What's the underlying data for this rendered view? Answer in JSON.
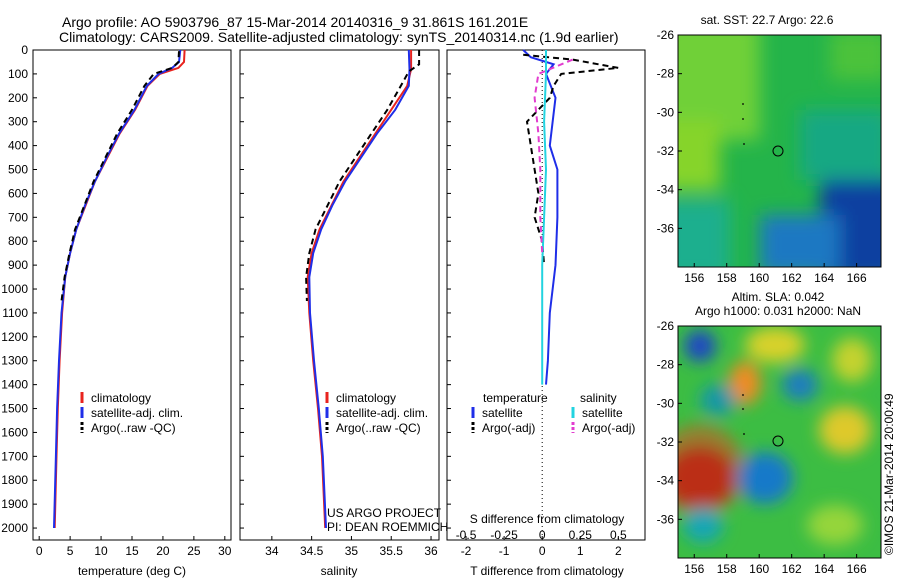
{
  "header": {
    "title_line1": "Argo profile: AO 5903796_87 15-Mar-2014 20140316_9 31.861S 161.201E",
    "title_line2": "Climatology: CARS2009. Satellite-adjusted climatology: synTS_20140314.nc (1.9d earlier)"
  },
  "colors": {
    "climatology": "#e8231e",
    "satellite": "#1f2ee8",
    "argo": "#000000",
    "cyan": "#22d3e0",
    "magenta": "#e23ccf"
  },
  "chart_data": [
    {
      "type": "line",
      "id": "temperature",
      "xlabel": "temperature (deg C)",
      "ylabel": "",
      "xlim": [
        -1,
        31
      ],
      "ylim": [
        2050,
        0
      ],
      "xticks": [
        0,
        5,
        10,
        15,
        20,
        25,
        30
      ],
      "yticks": [
        0,
        100,
        200,
        300,
        400,
        500,
        600,
        700,
        800,
        900,
        1000,
        1100,
        1200,
        1300,
        1400,
        1500,
        1600,
        1700,
        1800,
        1900,
        2000
      ],
      "legend": [
        "climatology",
        "satellite-adj. clim.",
        "Argo(..raw -QC)"
      ],
      "series": [
        {
          "name": "climatology",
          "color_key": "climatology",
          "dash": false,
          "points": [
            [
              23.5,
              0
            ],
            [
              23.4,
              50
            ],
            [
              22.5,
              75
            ],
            [
              19.5,
              100
            ],
            [
              17.5,
              150
            ],
            [
              15.5,
              250
            ],
            [
              13,
              350
            ],
            [
              11,
              450
            ],
            [
              9,
              550
            ],
            [
              7.5,
              650
            ],
            [
              6,
              750
            ],
            [
              5,
              850
            ],
            [
              4.2,
              950
            ],
            [
              3.7,
              1100
            ],
            [
              3.3,
              1300
            ],
            [
              3,
              1500
            ],
            [
              2.8,
              1700
            ],
            [
              2.5,
              2000
            ]
          ]
        },
        {
          "name": "satellite-adj. clim.",
          "color_key": "satellite",
          "dash": false,
          "points": [
            [
              22.8,
              0
            ],
            [
              22.6,
              50
            ],
            [
              21.5,
              75
            ],
            [
              19.3,
              100
            ],
            [
              17.4,
              150
            ],
            [
              15.4,
              250
            ],
            [
              12.9,
              350
            ],
            [
              10.9,
              450
            ],
            [
              9,
              550
            ],
            [
              7.4,
              650
            ],
            [
              6,
              750
            ],
            [
              5,
              850
            ],
            [
              4.2,
              950
            ],
            [
              3.6,
              1100
            ],
            [
              3.2,
              1300
            ],
            [
              2.9,
              1500
            ],
            [
              2.7,
              1700
            ],
            [
              2.4,
              2000
            ]
          ]
        },
        {
          "name": "Argo(..raw -QC)",
          "color_key": "argo",
          "dash": true,
          "points": [
            [
              22.6,
              5
            ],
            [
              22.5,
              50
            ],
            [
              21.5,
              75
            ],
            [
              18.5,
              100
            ],
            [
              17,
              150
            ],
            [
              15,
              250
            ],
            [
              12.6,
              350
            ],
            [
              10.7,
              450
            ],
            [
              8.8,
              550
            ],
            [
              7.3,
              650
            ],
            [
              5.8,
              750
            ],
            [
              4.9,
              850
            ],
            [
              4.1,
              950
            ],
            [
              3.6,
              1050
            ]
          ]
        }
      ]
    },
    {
      "type": "line",
      "id": "salinity",
      "xlabel": "salinity",
      "ylabel": "",
      "xlim": [
        33.6,
        36.1
      ],
      "ylim": [
        2050,
        0
      ],
      "xticks": [
        34,
        34.5,
        35,
        35.5,
        36
      ],
      "legend": [
        "climatology",
        "satellite-adj. clim.",
        "Argo(..raw -QC)"
      ],
      "series": [
        {
          "name": "climatology",
          "color_key": "climatology",
          "dash": false,
          "points": [
            [
              35.75,
              0
            ],
            [
              35.75,
              80
            ],
            [
              35.7,
              150
            ],
            [
              35.5,
              250
            ],
            [
              35.3,
              350
            ],
            [
              35.1,
              450
            ],
            [
              34.9,
              550
            ],
            [
              34.75,
              650
            ],
            [
              34.6,
              750
            ],
            [
              34.5,
              850
            ],
            [
              34.45,
              950
            ],
            [
              34.47,
              1100
            ],
            [
              34.52,
              1300
            ],
            [
              34.58,
              1500
            ],
            [
              34.63,
              1700
            ],
            [
              34.67,
              2000
            ]
          ]
        },
        {
          "name": "satellite-adj. clim.",
          "color_key": "satellite",
          "dash": false,
          "points": [
            [
              35.72,
              0
            ],
            [
              35.73,
              80
            ],
            [
              35.72,
              150
            ],
            [
              35.55,
              250
            ],
            [
              35.32,
              350
            ],
            [
              35.12,
              450
            ],
            [
              34.92,
              550
            ],
            [
              34.76,
              650
            ],
            [
              34.62,
              750
            ],
            [
              34.52,
              850
            ],
            [
              34.47,
              950
            ],
            [
              34.48,
              1100
            ],
            [
              34.53,
              1300
            ],
            [
              34.59,
              1500
            ],
            [
              34.64,
              1700
            ],
            [
              34.68,
              2000
            ]
          ]
        },
        {
          "name": "Argo(..raw -QC)",
          "color_key": "argo",
          "dash": true,
          "points": [
            [
              35.85,
              0
            ],
            [
              35.85,
              60
            ],
            [
              35.72,
              90
            ],
            [
              35.62,
              150
            ],
            [
              35.45,
              250
            ],
            [
              35.25,
              350
            ],
            [
              35.05,
              450
            ],
            [
              34.85,
              550
            ],
            [
              34.7,
              650
            ],
            [
              34.55,
              750
            ],
            [
              34.47,
              850
            ],
            [
              34.43,
              950
            ],
            [
              34.44,
              1050
            ]
          ]
        }
      ]
    },
    {
      "type": "line",
      "id": "difference",
      "xlabel": "T difference from climatology",
      "xlabel_top": "S difference from climatology",
      "xlim": [
        -2.5,
        2.7
      ],
      "ylim": [
        2050,
        0
      ],
      "xticks": [
        -2,
        -1,
        0,
        1,
        2
      ],
      "xticks_s": [
        -0.5,
        -0.25,
        0,
        0.25,
        0.5
      ],
      "xticks_s_labels": [
        "-0.5",
        "-0.25",
        "0",
        "0.25",
        "0.5"
      ],
      "legend_groups": {
        "temperature": [
          "satellite",
          "Argo(-adj)"
        ],
        "salinity": [
          "satellite",
          "Argo(-adj)"
        ]
      },
      "series": [
        {
          "name": "T satellite",
          "color_key": "satellite",
          "dash": false,
          "points": [
            [
              -0.5,
              0
            ],
            [
              -0.3,
              30
            ],
            [
              0.3,
              60
            ],
            [
              0.1,
              100
            ],
            [
              0.35,
              200
            ],
            [
              0.2,
              400
            ],
            [
              0.4,
              500
            ],
            [
              0.4,
              700
            ],
            [
              0.35,
              900
            ],
            [
              0.2,
              1100
            ],
            [
              0.15,
              1300
            ],
            [
              0.1,
              1400
            ]
          ]
        },
        {
          "name": "T Argo(-adj)",
          "color_key": "argo",
          "dash": true,
          "points": [
            [
              -0.5,
              20
            ],
            [
              0.8,
              40
            ],
            [
              2.0,
              75
            ],
            [
              0.5,
              100
            ],
            [
              0.3,
              150
            ],
            [
              0.2,
              200
            ],
            [
              -0.4,
              300
            ],
            [
              -0.3,
              400
            ],
            [
              -0.2,
              500
            ],
            [
              -0.1,
              600
            ],
            [
              -0.2,
              700
            ],
            [
              0.0,
              800
            ],
            [
              0.05,
              900
            ]
          ]
        },
        {
          "name": "S satellite",
          "color_key": "cyan",
          "dash": false,
          "points": [
            [
              0.1,
              0
            ],
            [
              0.1,
              100
            ],
            [
              0.05,
              300
            ],
            [
              0.1,
              500
            ],
            [
              0.05,
              700
            ],
            [
              0.0,
              900
            ],
            [
              0.0,
              1100
            ],
            [
              0.0,
              1400
            ]
          ]
        },
        {
          "name": "S Argo(-adj)",
          "color_key": "magenta",
          "dash": true,
          "points": [
            [
              0.8,
              40
            ],
            [
              -0.1,
              100
            ],
            [
              -0.2,
              200
            ],
            [
              -0.1,
              350
            ],
            [
              -0.05,
              500
            ],
            [
              -0.05,
              700
            ],
            [
              0.0,
              850
            ]
          ]
        }
      ]
    },
    {
      "type": "heatmap",
      "id": "sst_map",
      "title": "sat. SST: 22.7  Argo: 22.6",
      "xticks": [
        156,
        158,
        160,
        162,
        164,
        166
      ],
      "yticks": [
        -26,
        -28,
        -30,
        -32,
        -34,
        -36
      ],
      "xlim": [
        155,
        167.5
      ],
      "ylim": [
        -38,
        -26
      ],
      "marker": {
        "lon": 161.2,
        "lat": -31.86
      }
    },
    {
      "type": "heatmap",
      "id": "sla_map",
      "title": "Altim. SLA: 0.042",
      "subtitle": "Argo h1000: 0.031 h2000: NaN",
      "xticks": [
        156,
        158,
        160,
        162,
        164,
        166
      ],
      "yticks": [
        -26,
        -28,
        -30,
        -32,
        -34,
        -36
      ],
      "xlim": [
        155,
        167.5
      ],
      "ylim": [
        -38,
        -26
      ],
      "marker": {
        "lon": 161.2,
        "lat": -31.86
      }
    }
  ],
  "legend_labels": {
    "climatology": "climatology",
    "satellite_adj": "satellite-adj. clim.",
    "argo_raw": "Argo(..raw -QC)",
    "temperature": "temperature",
    "salinity": "salinity",
    "satellite": "satellite",
    "argo_adj": "Argo(-adj)"
  },
  "credits": {
    "project": "US ARGO PROJECT",
    "pi": "PI: DEAN ROEMMICH",
    "timestamp": "©IMOS 21-Mar-2014 20:00:49"
  }
}
